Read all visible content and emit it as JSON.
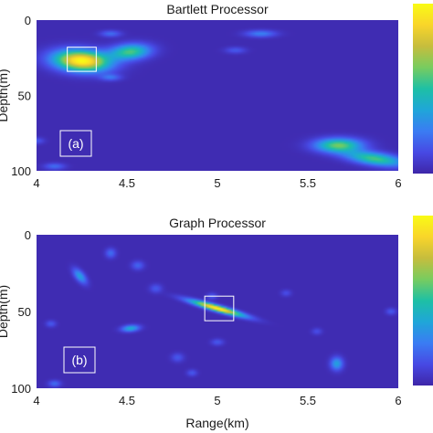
{
  "colors": {
    "background": "#3a2fb3",
    "box": "#ffffff",
    "colormap": [
      "#3e26a8",
      "#4749e4",
      "#3a7cf3",
      "#1fa6d8",
      "#1ec0a5",
      "#78cc5f",
      "#c6bd3d",
      "#f9d52a",
      "#f9fb15"
    ]
  },
  "chart_data": [
    {
      "type": "heatmap",
      "title": "Bartlett Processor",
      "xlabel": "",
      "ylabel": "Depth(m)",
      "xlim": [
        4,
        6
      ],
      "ylim": [
        0,
        100
      ],
      "y_reversed": true,
      "x_ticks": [
        "4",
        "4.5",
        "5",
        "5.5",
        "6"
      ],
      "y_ticks": [
        "0",
        "50",
        "100"
      ],
      "annotation": "(a)",
      "highlight_box": {
        "x": [
          4.17,
          4.33
        ],
        "y": [
          18,
          34
        ]
      },
      "peaks": [
        {
          "x": 4.25,
          "y": 27,
          "intensity": 1.0,
          "sx": 0.055,
          "sy": 4.6,
          "rot": -0.5
        },
        {
          "x": 4.52,
          "y": 21,
          "intensity": 0.55,
          "sx": 0.04,
          "sy": 3.4,
          "rot": 0.6
        },
        {
          "x": 5.67,
          "y": 83,
          "intensity": 0.6,
          "sx": 0.045,
          "sy": 3.2,
          "rot": 0.0
        },
        {
          "x": 5.87,
          "y": 92,
          "intensity": 0.55,
          "sx": 0.06,
          "sy": 2.8,
          "rot": -0.4
        },
        {
          "x": 4.41,
          "y": 9,
          "intensity": 0.2,
          "sx": 0.02,
          "sy": 1.5,
          "rot": 0.0
        },
        {
          "x": 5.24,
          "y": 9,
          "intensity": 0.25,
          "sx": 0.03,
          "sy": 1.6,
          "rot": 0.0
        },
        {
          "x": 4.41,
          "y": 38,
          "intensity": 0.2,
          "sx": 0.02,
          "sy": 1.5,
          "rot": 0.0
        },
        {
          "x": 5.1,
          "y": 20,
          "intensity": 0.15,
          "sx": 0.02,
          "sy": 1.5,
          "rot": 0.0
        },
        {
          "x": 4.1,
          "y": 97,
          "intensity": 0.2,
          "sx": 0.02,
          "sy": 1.5,
          "rot": 0.0
        },
        {
          "x": 4.0,
          "y": 80,
          "intensity": 0.15,
          "sx": 0.015,
          "sy": 1.5,
          "rot": 0.0
        }
      ]
    },
    {
      "type": "heatmap",
      "title": "Graph Processor",
      "xlabel": "Range(km)",
      "ylabel": "Depth(m)",
      "xlim": [
        4,
        6
      ],
      "ylim": [
        0,
        100
      ],
      "y_reversed": true,
      "x_ticks": [
        "4",
        "4.5",
        "5",
        "5.5",
        "6"
      ],
      "y_ticks": [
        "0",
        "50",
        "100"
      ],
      "annotation": "(b)",
      "highlight_box": {
        "x": [
          4.93,
          5.09
        ],
        "y": [
          40,
          56
        ]
      },
      "peaks": [
        {
          "x": 5.0,
          "y": 48,
          "intensity": 1.0,
          "sx": 0.06,
          "sy": 1.2,
          "rot": -0.6
        },
        {
          "x": 4.24,
          "y": 27,
          "intensity": 0.35,
          "sx": 0.01,
          "sy": 3.5,
          "rot": 0.25
        },
        {
          "x": 4.52,
          "y": 61,
          "intensity": 0.4,
          "sx": 0.018,
          "sy": 1.4,
          "rot": 0.5
        },
        {
          "x": 5.66,
          "y": 84,
          "intensity": 0.35,
          "sx": 0.012,
          "sy": 3.0,
          "rot": 0.0
        },
        {
          "x": 4.41,
          "y": 12,
          "intensity": 0.2,
          "sx": 0.01,
          "sy": 2.2,
          "rot": 0.0
        },
        {
          "x": 4.56,
          "y": 20,
          "intensity": 0.18,
          "sx": 0.012,
          "sy": 2.0,
          "rot": 0.0
        },
        {
          "x": 4.66,
          "y": 35,
          "intensity": 0.15,
          "sx": 0.012,
          "sy": 2.0,
          "rot": 0.0
        },
        {
          "x": 4.1,
          "y": 97,
          "intensity": 0.2,
          "sx": 0.012,
          "sy": 1.5,
          "rot": 0.0
        },
        {
          "x": 4.08,
          "y": 58,
          "intensity": 0.15,
          "sx": 0.01,
          "sy": 1.5,
          "rot": 0.0
        },
        {
          "x": 4.97,
          "y": 40,
          "intensity": 0.15,
          "sx": 0.01,
          "sy": 1.5,
          "rot": 0.0
        },
        {
          "x": 5.0,
          "y": 70,
          "intensity": 0.15,
          "sx": 0.012,
          "sy": 1.5,
          "rot": 0.0
        },
        {
          "x": 5.38,
          "y": 38,
          "intensity": 0.12,
          "sx": 0.01,
          "sy": 1.5,
          "rot": 0.0
        },
        {
          "x": 5.96,
          "y": 50,
          "intensity": 0.15,
          "sx": 0.01,
          "sy": 1.5,
          "rot": 0.0
        },
        {
          "x": 4.78,
          "y": 80,
          "intensity": 0.15,
          "sx": 0.012,
          "sy": 2.0,
          "rot": 0.0
        },
        {
          "x": 5.55,
          "y": 63,
          "intensity": 0.12,
          "sx": 0.01,
          "sy": 1.5,
          "rot": 0.0
        },
        {
          "x": 4.86,
          "y": 90,
          "intensity": 0.15,
          "sx": 0.01,
          "sy": 1.5,
          "rot": 0.0
        }
      ]
    }
  ]
}
